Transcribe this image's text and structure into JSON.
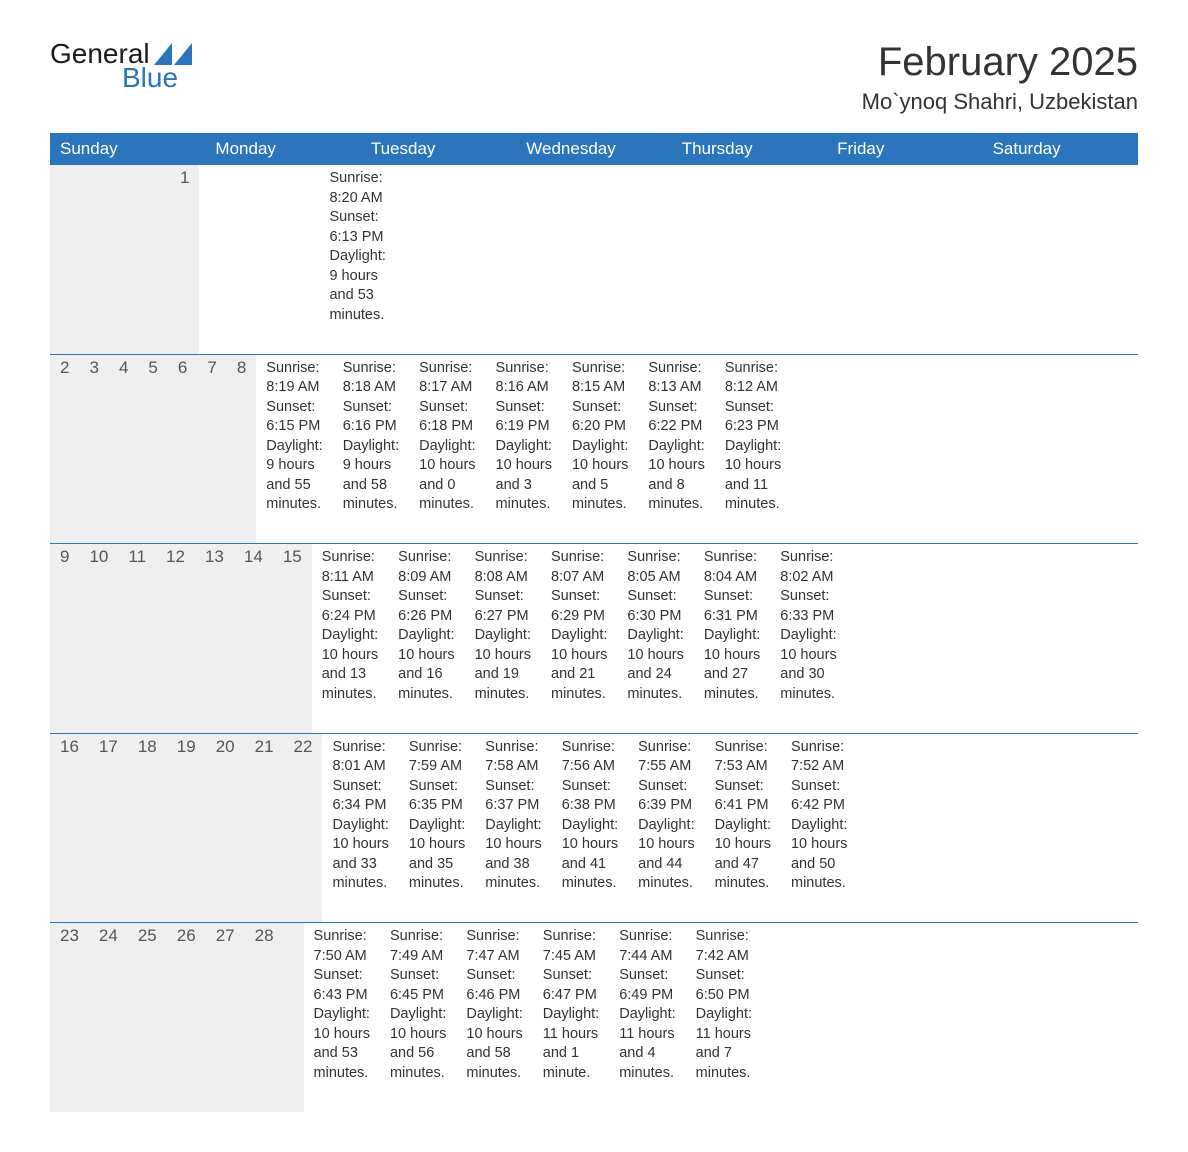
{
  "logo": {
    "text1": "General",
    "text2": "Blue"
  },
  "title": "February 2025",
  "location": "Mo`ynoq Shahri, Uzbekistan",
  "colors": {
    "header_bg": "#2a75bb",
    "header_text": "#ffffff",
    "daynum_bg": "#efefef",
    "text": "#333333",
    "divider": "#2a75bb",
    "page_bg": "#ffffff",
    "logo_blue": "#2a75bb"
  },
  "typography": {
    "title_fontsize": 40,
    "location_fontsize": 22,
    "weekday_fontsize": 17,
    "daynum_fontsize": 17,
    "body_fontsize": 14.5
  },
  "weekdays": [
    "Sunday",
    "Monday",
    "Tuesday",
    "Wednesday",
    "Thursday",
    "Friday",
    "Saturday"
  ],
  "weeks": [
    [
      null,
      null,
      null,
      null,
      null,
      null,
      {
        "day": "1",
        "sunrise": "8:20 AM",
        "sunset": "6:13 PM",
        "daylight": "9 hours and 53 minutes."
      }
    ],
    [
      {
        "day": "2",
        "sunrise": "8:19 AM",
        "sunset": "6:15 PM",
        "daylight": "9 hours and 55 minutes."
      },
      {
        "day": "3",
        "sunrise": "8:18 AM",
        "sunset": "6:16 PM",
        "daylight": "9 hours and 58 minutes."
      },
      {
        "day": "4",
        "sunrise": "8:17 AM",
        "sunset": "6:18 PM",
        "daylight": "10 hours and 0 minutes."
      },
      {
        "day": "5",
        "sunrise": "8:16 AM",
        "sunset": "6:19 PM",
        "daylight": "10 hours and 3 minutes."
      },
      {
        "day": "6",
        "sunrise": "8:15 AM",
        "sunset": "6:20 PM",
        "daylight": "10 hours and 5 minutes."
      },
      {
        "day": "7",
        "sunrise": "8:13 AM",
        "sunset": "6:22 PM",
        "daylight": "10 hours and 8 minutes."
      },
      {
        "day": "8",
        "sunrise": "8:12 AM",
        "sunset": "6:23 PM",
        "daylight": "10 hours and 11 minutes."
      }
    ],
    [
      {
        "day": "9",
        "sunrise": "8:11 AM",
        "sunset": "6:24 PM",
        "daylight": "10 hours and 13 minutes."
      },
      {
        "day": "10",
        "sunrise": "8:09 AM",
        "sunset": "6:26 PM",
        "daylight": "10 hours and 16 minutes."
      },
      {
        "day": "11",
        "sunrise": "8:08 AM",
        "sunset": "6:27 PM",
        "daylight": "10 hours and 19 minutes."
      },
      {
        "day": "12",
        "sunrise": "8:07 AM",
        "sunset": "6:29 PM",
        "daylight": "10 hours and 21 minutes."
      },
      {
        "day": "13",
        "sunrise": "8:05 AM",
        "sunset": "6:30 PM",
        "daylight": "10 hours and 24 minutes."
      },
      {
        "day": "14",
        "sunrise": "8:04 AM",
        "sunset": "6:31 PM",
        "daylight": "10 hours and 27 minutes."
      },
      {
        "day": "15",
        "sunrise": "8:02 AM",
        "sunset": "6:33 PM",
        "daylight": "10 hours and 30 minutes."
      }
    ],
    [
      {
        "day": "16",
        "sunrise": "8:01 AM",
        "sunset": "6:34 PM",
        "daylight": "10 hours and 33 minutes."
      },
      {
        "day": "17",
        "sunrise": "7:59 AM",
        "sunset": "6:35 PM",
        "daylight": "10 hours and 35 minutes."
      },
      {
        "day": "18",
        "sunrise": "7:58 AM",
        "sunset": "6:37 PM",
        "daylight": "10 hours and 38 minutes."
      },
      {
        "day": "19",
        "sunrise": "7:56 AM",
        "sunset": "6:38 PM",
        "daylight": "10 hours and 41 minutes."
      },
      {
        "day": "20",
        "sunrise": "7:55 AM",
        "sunset": "6:39 PM",
        "daylight": "10 hours and 44 minutes."
      },
      {
        "day": "21",
        "sunrise": "7:53 AM",
        "sunset": "6:41 PM",
        "daylight": "10 hours and 47 minutes."
      },
      {
        "day": "22",
        "sunrise": "7:52 AM",
        "sunset": "6:42 PM",
        "daylight": "10 hours and 50 minutes."
      }
    ],
    [
      {
        "day": "23",
        "sunrise": "7:50 AM",
        "sunset": "6:43 PM",
        "daylight": "10 hours and 53 minutes."
      },
      {
        "day": "24",
        "sunrise": "7:49 AM",
        "sunset": "6:45 PM",
        "daylight": "10 hours and 56 minutes."
      },
      {
        "day": "25",
        "sunrise": "7:47 AM",
        "sunset": "6:46 PM",
        "daylight": "10 hours and 58 minutes."
      },
      {
        "day": "26",
        "sunrise": "7:45 AM",
        "sunset": "6:47 PM",
        "daylight": "11 hours and 1 minute."
      },
      {
        "day": "27",
        "sunrise": "7:44 AM",
        "sunset": "6:49 PM",
        "daylight": "11 hours and 4 minutes."
      },
      {
        "day": "28",
        "sunrise": "7:42 AM",
        "sunset": "6:50 PM",
        "daylight": "11 hours and 7 minutes."
      },
      null
    ]
  ],
  "labels": {
    "sunrise": "Sunrise:",
    "sunset": "Sunset:",
    "daylight": "Daylight:"
  }
}
